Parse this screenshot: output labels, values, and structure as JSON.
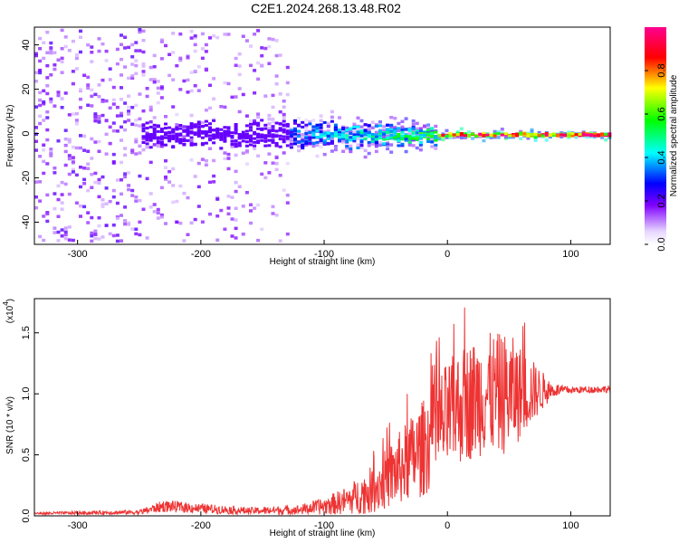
{
  "title": "C2E1.2024.268.13.48.R02",
  "chart_data": [
    {
      "type": "heatmap",
      "title": "C2E1.2024.268.13.48.R02",
      "xlabel": "Height of straight line (km)",
      "ylabel": "Frequency (Hz)",
      "xlim": [
        -335,
        132
      ],
      "ylim": [
        -50,
        48
      ],
      "x_ticks": [
        -300,
        -200,
        -100,
        0,
        100
      ],
      "y_ticks": [
        -40,
        -20,
        0,
        20,
        40
      ],
      "colorbar": {
        "label": "Normalized spectral amplitude",
        "range": [
          0,
          1
        ],
        "ticks": [
          0.0,
          0.2,
          0.4,
          0.6,
          0.8
        ],
        "tick_labels": [
          "0.0",
          "0.2",
          "0.4",
          "0.6",
          "0.8"
        ],
        "colormap": [
          "#ffffff",
          "#e6d6ff",
          "#7000ff",
          "#0000ff",
          "#00ffff",
          "#00ff00",
          "#ffff00",
          "#ff0000",
          "#ff00a0"
        ]
      },
      "regions": [
        {
          "x_range": [
            -335,
            -245
          ],
          "freq_spread": 48,
          "amplitude": 0.2,
          "note": "scattered purple"
        },
        {
          "x_range": [
            -245,
            -130
          ],
          "freq_spread": 48,
          "amplitude": 0.2,
          "note": "scattered purple with dense band near 0 Hz"
        },
        {
          "x_range": [
            -130,
            -10
          ],
          "freq_spread": 8,
          "amplitude": 0.5,
          "note": "concentrated band near 0 Hz"
        },
        {
          "x_range": [
            -10,
            132
          ],
          "freq_spread": 2,
          "amplitude": 0.9,
          "note": "narrow red line at 0 Hz"
        }
      ]
    },
    {
      "type": "line",
      "xlabel": "Height of straight line (km)",
      "ylabel": "SNR (10 * v/v)",
      "multiplier_label": "(x10",
      "multiplier_exponent": "4",
      "xlim": [
        -335,
        132
      ],
      "ylim": [
        0,
        1.78
      ],
      "x_ticks": [
        -300,
        -200,
        -100,
        0,
        100
      ],
      "y_ticks": [
        0.0,
        0.5,
        1.0,
        1.5
      ],
      "y_tick_labels": [
        "0.0",
        "0.5",
        "1.0",
        "1.5"
      ],
      "line_color": "#ee3333",
      "envelope": {
        "x": [
          -335,
          -250,
          -230,
          -200,
          -160,
          -120,
          -100,
          -80,
          -60,
          -40,
          -20,
          -5,
          10,
          30,
          50,
          70,
          85,
          100,
          132
        ],
        "y": [
          0.02,
          0.03,
          0.08,
          0.06,
          0.04,
          0.05,
          0.08,
          0.13,
          0.22,
          0.38,
          0.55,
          0.75,
          0.9,
          1.0,
          1.0,
          1.02,
          1.03,
          1.03,
          1.04
        ],
        "amp": [
          0.01,
          0.02,
          0.05,
          0.04,
          0.03,
          0.04,
          0.07,
          0.12,
          0.2,
          0.3,
          0.4,
          0.45,
          0.48,
          0.5,
          0.5,
          0.25,
          0.06,
          0.03,
          0.03
        ]
      }
    }
  ]
}
